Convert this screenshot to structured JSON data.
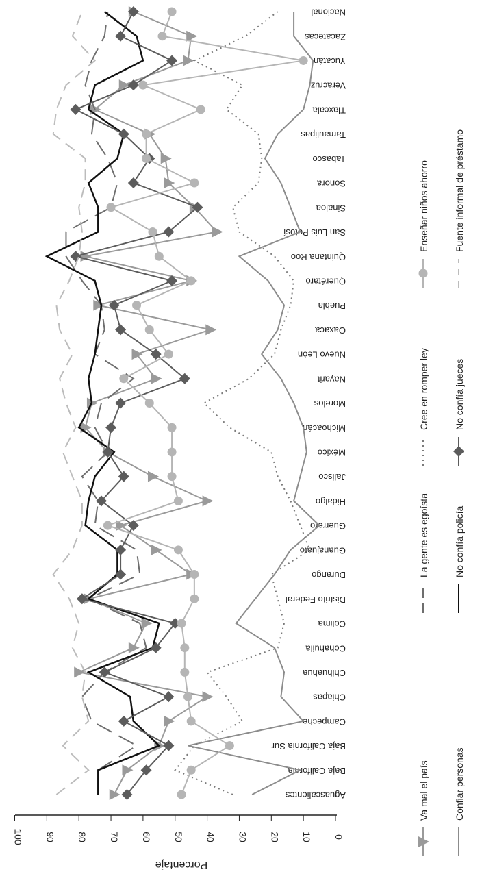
{
  "chart_data": {
    "type": "line",
    "orientation": "rotated-90-clockwise",
    "ylabel": "Porcentaje",
    "ylim": [
      0,
      100
    ],
    "yticks": [
      0,
      10,
      20,
      30,
      40,
      50,
      60,
      70,
      80,
      90,
      100
    ],
    "categories": [
      "Aguascalientes",
      "Baja California",
      "Baja California Sur",
      "Campeche",
      "Chiapas",
      "Chihuahua",
      "Cohahuila",
      "Colima",
      "Distrito Federal",
      "Durango",
      "Guanajuato",
      "Guerrero",
      "Hidalgo",
      "Jalisco",
      "México",
      "Michoacán",
      "Morelos",
      "Nayarit",
      "Nuevo León",
      "Oaxaca",
      "Puebla",
      "Querétaro",
      "Quintana Roo",
      "San Luis Potosí",
      "Sinaloa",
      "Sonora",
      "Tabasco",
      "Tamaulipas",
      "Tlaxcala",
      "Veracruz",
      "Yucatán",
      "Zacatecas",
      "Nacional"
    ],
    "legend_position": "right",
    "series": [
      {
        "name": "Va mal el país",
        "style": "triangle",
        "color": "#9a9a9a",
        "values": [
          69,
          65,
          55,
          52,
          40,
          80,
          63,
          59,
          77,
          45,
          56,
          67,
          40,
          57,
          71,
          78,
          76,
          56,
          62,
          39,
          74,
          45,
          78,
          37,
          44,
          52,
          53,
          58,
          75,
          66,
          46,
          45,
          63
        ]
      },
      {
        "name": "Confiar personas",
        "style": "solid",
        "color": "#8c8c8c",
        "values": [
          26,
          11,
          46,
          10,
          17,
          16,
          19,
          31,
          25,
          19,
          14,
          5,
          13,
          11,
          9,
          10,
          13,
          17,
          23,
          18,
          16,
          21,
          30,
          11,
          14,
          17,
          22,
          18,
          10,
          8,
          7,
          13,
          13
        ]
      },
      {
        "name": "La gente es egoísta",
        "style": "longdash",
        "color": "#6e6e6e",
        "values": [
          74,
          74,
          62,
          76,
          79,
          72,
          59,
          61,
          77,
          61,
          62,
          75,
          74,
          79,
          71,
          75,
          73,
          63,
          75,
          72,
          73,
          79,
          84,
          84,
          70,
          68,
          71,
          76,
          75,
          78,
          76,
          72,
          71
        ]
      },
      {
        "name": "No confía policía",
        "style": "solid",
        "color": "#111111",
        "values": [
          74,
          74,
          55,
          63,
          64,
          77,
          57,
          55,
          77,
          68,
          68,
          78,
          77,
          75,
          69,
          80,
          76,
          77,
          75,
          74,
          73,
          75,
          90,
          74,
          74,
          77,
          68,
          66,
          77,
          75,
          60,
          62,
          72
        ]
      },
      {
        "name": "Cree en romper ley",
        "style": "dotted",
        "color": "#7a7a7a",
        "values": [
          32,
          50,
          44,
          29,
          34,
          40,
          18,
          16,
          18,
          20,
          8,
          11,
          14,
          18,
          20,
          33,
          41,
          27,
          19,
          17,
          14,
          13,
          19,
          30,
          32,
          24,
          23,
          24,
          34,
          29,
          44,
          28,
          18
        ]
      },
      {
        "name": "No confía jueces",
        "style": "diamond",
        "color": "#5c5c5c",
        "values": [
          65,
          59,
          52,
          66,
          52,
          72,
          56,
          50,
          79,
          67,
          67,
          63,
          73,
          66,
          71,
          70,
          67,
          47,
          56,
          67,
          69,
          51,
          81,
          52,
          43,
          63,
          58,
          66,
          81,
          63,
          51,
          67,
          63
        ]
      },
      {
        "name": "Enseñar niños ahorro",
        "style": "circle",
        "color": "#b5b5b5",
        "values": [
          48,
          45,
          33,
          45,
          46,
          47,
          47,
          48,
          44,
          44,
          49,
          71,
          49,
          51,
          51,
          51,
          58,
          66,
          52,
          58,
          62,
          45,
          55,
          57,
          70,
          44,
          59,
          59,
          42,
          60,
          10,
          54,
          51
        ]
      },
      {
        "name": "Fuente informal de préstamo",
        "style": "shortdash",
        "color": "#bcbcbc",
        "values": [
          87,
          77,
          85,
          77,
          79,
          78,
          82,
          80,
          83,
          88,
          82,
          79,
          79,
          82,
          85,
          81,
          84,
          86,
          82,
          86,
          87,
          83,
          80,
          79,
          80,
          78,
          78,
          88,
          87,
          84,
          75,
          82,
          79
        ]
      }
    ]
  }
}
